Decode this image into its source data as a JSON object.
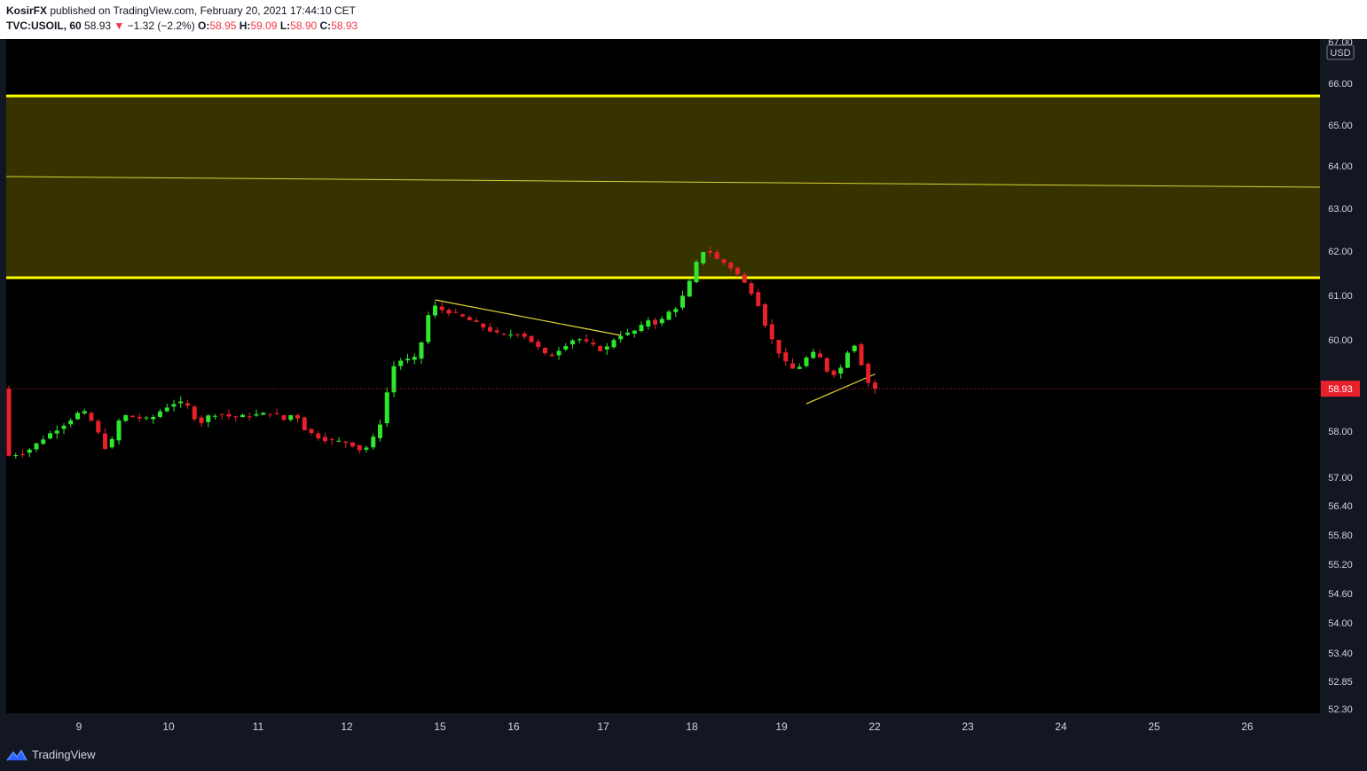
{
  "header": {
    "author": "KosirFX",
    "published_text": " published on TradingView.com, February 20, 2021 17:44:10 CET",
    "symbol": "TVC:USOIL, 60",
    "last": "58.93",
    "change_arrow": "▼",
    "change": "−1.32 (−2.2%)",
    "o_label": "O:",
    "o_value": "58.95",
    "h_label": "H:",
    "h_value": "59.09",
    "l_label": "L:",
    "l_value": "58.90",
    "c_label": "C:",
    "c_value": "58.93"
  },
  "footer": {
    "brand_label": "TradingView",
    "logo_icon": "tradingview-logo-icon"
  },
  "colors": {
    "up": "#2ee62e",
    "down": "#e8202a",
    "zone_fill": "#363300",
    "zone_line": "#ffff00",
    "trendline": "#e6d93a",
    "price_line": "#d4202a",
    "plot_bg": "#000000",
    "axis_text": "#d1d4dc"
  },
  "chart_data": {
    "type": "candlestick",
    "instrument": "TVC:USOIL",
    "interval": "60",
    "currency": "USD",
    "last_price": 58.93,
    "last_price_label": "58.93",
    "y_ticks": [
      "67.00",
      "66.00",
      "65.00",
      "64.00",
      "63.00",
      "62.00",
      "61.00",
      "60.00",
      "58.00",
      "57.00",
      "56.40",
      "55.80",
      "55.20",
      "54.60",
      "54.00",
      "53.40",
      "52.85",
      "52.30"
    ],
    "x_ticks": [
      "9",
      "10",
      "11",
      "12",
      "15",
      "16",
      "17",
      "18",
      "19",
      "22",
      "23",
      "24",
      "25",
      "26"
    ],
    "zone": {
      "upper": 65.7,
      "lower": 61.4
    },
    "midline": {
      "from": 63.75,
      "to": 63.5
    },
    "price_path": [
      [
        0,
        57.45
      ],
      [
        3,
        57.55
      ],
      [
        6,
        57.9
      ],
      [
        9,
        58.2
      ],
      [
        11,
        58.45
      ],
      [
        12,
        58.35
      ],
      [
        13,
        58.1
      ],
      [
        14,
        57.8
      ],
      [
        15,
        57.5
      ],
      [
        16,
        58.1
      ],
      [
        17,
        58.35
      ],
      [
        19,
        58.3
      ],
      [
        21,
        58.25
      ],
      [
        23,
        58.5
      ],
      [
        25,
        58.65
      ],
      [
        27,
        58.5
      ],
      [
        28,
        58.1
      ],
      [
        29,
        58.3
      ],
      [
        31,
        58.4
      ],
      [
        33,
        58.3
      ],
      [
        36,
        58.35
      ],
      [
        39,
        58.4
      ],
      [
        41,
        58.2
      ],
      [
        42,
        58.5
      ],
      [
        43,
        58.1
      ],
      [
        45,
        57.9
      ],
      [
        47,
        57.8
      ],
      [
        50,
        57.75
      ],
      [
        52,
        57.55
      ],
      [
        54,
        57.95
      ],
      [
        55,
        58.4
      ],
      [
        56,
        59.3
      ],
      [
        57,
        59.55
      ],
      [
        58,
        59.55
      ],
      [
        60,
        59.6
      ],
      [
        61,
        60.3
      ],
      [
        62,
        60.8
      ],
      [
        63,
        60.7
      ],
      [
        66,
        60.55
      ],
      [
        68,
        60.4
      ],
      [
        70,
        60.25
      ],
      [
        72,
        60.1
      ],
      [
        75,
        60.15
      ],
      [
        77,
        59.9
      ],
      [
        79,
        59.6
      ],
      [
        81,
        59.85
      ],
      [
        83,
        60.05
      ],
      [
        85,
        59.9
      ],
      [
        87,
        59.75
      ],
      [
        89,
        60.1
      ],
      [
        91,
        60.15
      ],
      [
        93,
        60.35
      ],
      [
        94,
        60.55
      ],
      [
        95,
        60.2
      ],
      [
        96,
        60.7
      ],
      [
        97,
        60.55
      ],
      [
        98,
        60.9
      ],
      [
        99,
        61.05
      ],
      [
        100,
        61.55
      ],
      [
        101,
        61.9
      ],
      [
        102,
        62.1
      ],
      [
        103,
        61.85
      ],
      [
        105,
        61.7
      ],
      [
        107,
        61.4
      ],
      [
        108,
        61.15
      ],
      [
        109,
        61.0
      ],
      [
        110,
        60.6
      ],
      [
        111,
        60.1
      ],
      [
        112,
        59.9
      ],
      [
        113,
        59.55
      ],
      [
        115,
        59.3
      ],
      [
        116,
        59.55
      ],
      [
        118,
        59.75
      ],
      [
        119,
        59.45
      ],
      [
        120,
        59.2
      ],
      [
        122,
        59.45
      ],
      [
        123,
        60.05
      ],
      [
        124,
        59.75
      ],
      [
        125,
        59.2
      ],
      [
        126,
        58.93
      ]
    ],
    "trendlines": [
      {
        "from": [
          62,
          60.9
        ],
        "to": [
          89,
          60.1
        ]
      },
      {
        "from": [
          116,
          58.6
        ],
        "to": [
          126,
          59.25
        ]
      }
    ]
  }
}
